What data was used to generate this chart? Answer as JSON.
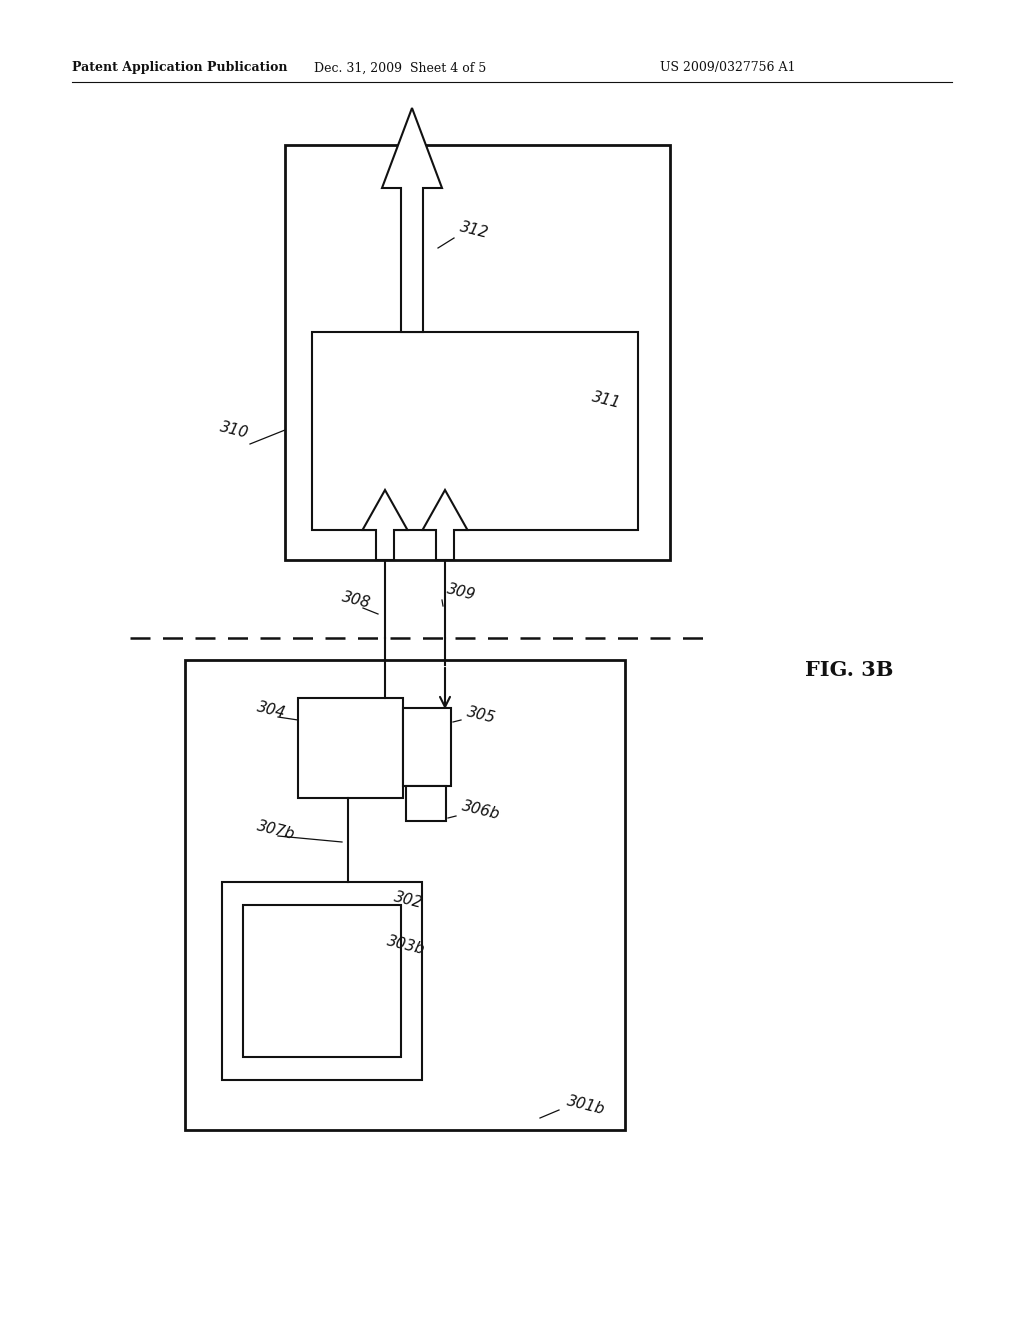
{
  "bg": "#ffffff",
  "header_left": "Patent Application Publication",
  "header_mid": "Dec. 31, 2009  Sheet 4 of 5",
  "header_right": "US 2009/0327756 A1",
  "fig_label": "FIG. 3B",
  "lw_main": 2.0,
  "lw_thin": 1.5,
  "lw_wire": 1.5,
  "label_fs": 11
}
